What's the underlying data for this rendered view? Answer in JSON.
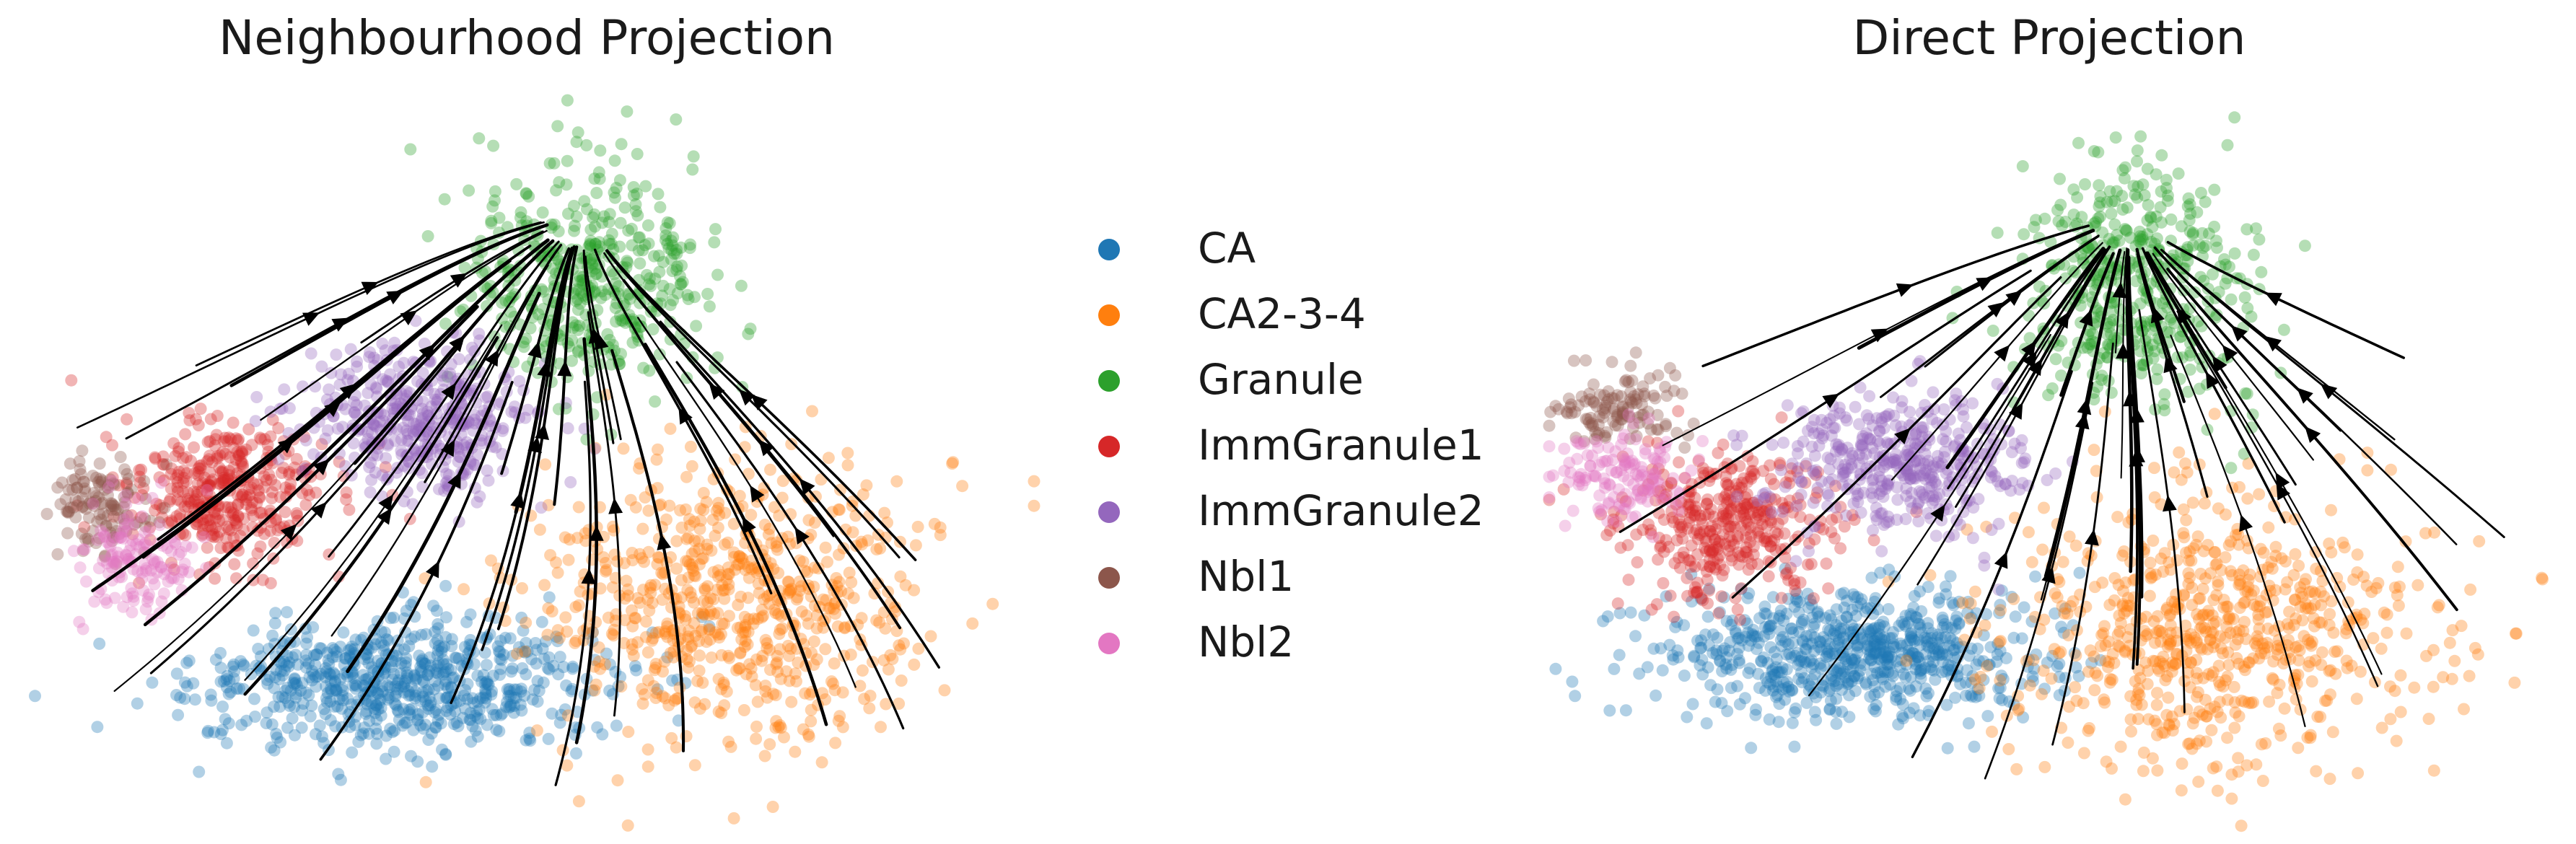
{
  "chart_data": [
    {
      "type": "scatter",
      "title": "Neighbourhood Projection",
      "xlabel": "",
      "ylabel": "",
      "axes_visible": false,
      "overlay": "streamlines",
      "point_alpha": 0.35,
      "series": [
        {
          "name": "CA",
          "color": "#1f77b4",
          "center": [
            0.37,
            0.81
          ],
          "spread": [
            0.17,
            0.07
          ],
          "n": 700
        },
        {
          "name": "CA2-3-4",
          "color": "#ff7f0e",
          "center": [
            0.7,
            0.7
          ],
          "spread": [
            0.16,
            0.15
          ],
          "n": 700
        },
        {
          "name": "Granule",
          "color": "#2ca02c",
          "center": [
            0.56,
            0.28
          ],
          "spread": [
            0.1,
            0.12
          ],
          "n": 450
        },
        {
          "name": "ImmGranule1",
          "color": "#d62728",
          "center": [
            0.2,
            0.56
          ],
          "spread": [
            0.08,
            0.08
          ],
          "n": 380
        },
        {
          "name": "ImmGranule2",
          "color": "#9467bd",
          "center": [
            0.39,
            0.46
          ],
          "spread": [
            0.1,
            0.08
          ],
          "n": 420
        },
        {
          "name": "Nbl1",
          "color": "#8c564b",
          "center": [
            0.08,
            0.58
          ],
          "spread": [
            0.04,
            0.05
          ],
          "n": 120
        },
        {
          "name": "Nbl2",
          "color": "#e377c2",
          "center": [
            0.11,
            0.65
          ],
          "spread": [
            0.05,
            0.05
          ],
          "n": 140
        }
      ]
    },
    {
      "type": "scatter",
      "title": "Direct Projection",
      "xlabel": "",
      "ylabel": "",
      "axes_visible": false,
      "overlay": "streamlines",
      "point_alpha": 0.35,
      "series": [
        {
          "name": "CA",
          "color": "#1f77b4",
          "center": [
            0.3,
            0.77
          ],
          "spread": [
            0.16,
            0.07
          ],
          "n": 700
        },
        {
          "name": "CA2-3-4",
          "color": "#ff7f0e",
          "center": [
            0.66,
            0.74
          ],
          "spread": [
            0.17,
            0.15
          ],
          "n": 700
        },
        {
          "name": "Granule",
          "color": "#2ca02c",
          "center": [
            0.58,
            0.28
          ],
          "spread": [
            0.09,
            0.14
          ],
          "n": 450
        },
        {
          "name": "ImmGranule1",
          "color": "#d62728",
          "center": [
            0.18,
            0.6
          ],
          "spread": [
            0.09,
            0.08
          ],
          "n": 380
        },
        {
          "name": "ImmGranule2",
          "color": "#9467bd",
          "center": [
            0.35,
            0.52
          ],
          "spread": [
            0.1,
            0.08
          ],
          "n": 420
        },
        {
          "name": "Nbl1",
          "color": "#8c564b",
          "center": [
            0.07,
            0.45
          ],
          "spread": [
            0.05,
            0.04
          ],
          "n": 120
        },
        {
          "name": "Nbl2",
          "color": "#e377c2",
          "center": [
            0.08,
            0.53
          ],
          "spread": [
            0.06,
            0.05
          ],
          "n": 140
        }
      ]
    }
  ],
  "legend": {
    "placement": "center",
    "entries": [
      {
        "label": "CA",
        "color": "#1f77b4"
      },
      {
        "label": "CA2-3-4",
        "color": "#ff7f0e"
      },
      {
        "label": "Granule",
        "color": "#2ca02c"
      },
      {
        "label": "ImmGranule1",
        "color": "#d62728"
      },
      {
        "label": "ImmGranule2",
        "color": "#9467bd"
      },
      {
        "label": "Nbl1",
        "color": "#8c564b"
      },
      {
        "label": "Nbl2",
        "color": "#e377c2"
      }
    ]
  }
}
